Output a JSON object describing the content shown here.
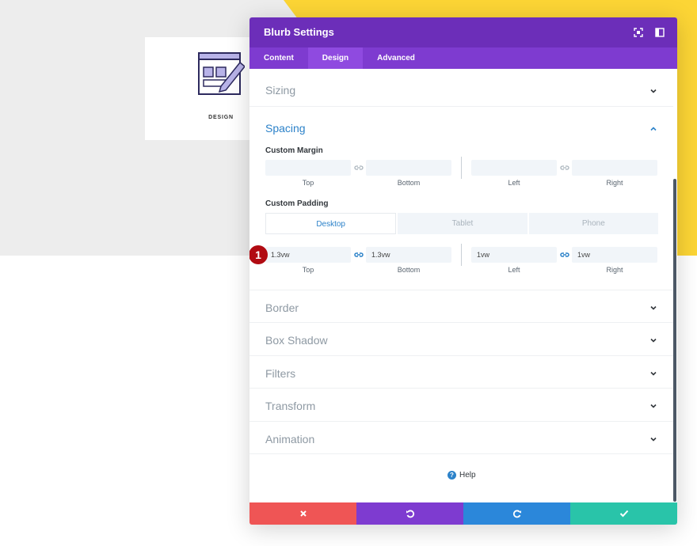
{
  "preview": {
    "blurb_title": "DESIGN",
    "colors": {
      "gray_bg": "#ededed",
      "yellow_bg": "#fcd535"
    }
  },
  "modal": {
    "title": "Blurb Settings",
    "tabs": [
      "Content",
      "Design",
      "Advanced"
    ],
    "active_tab": "Design",
    "colors": {
      "header": "#6c2eb9",
      "tabs": "#7e3bd0",
      "accent": "#2c82c9"
    }
  },
  "sections": {
    "sizing": "Sizing",
    "spacing": "Spacing",
    "border": "Border",
    "box_shadow": "Box Shadow",
    "filters": "Filters",
    "transform": "Transform",
    "animation": "Animation"
  },
  "spacing": {
    "margin_label": "Custom Margin",
    "padding_label": "Custom Padding",
    "captions": {
      "top": "Top",
      "bottom": "Bottom",
      "left": "Left",
      "right": "Right"
    },
    "margin": {
      "top": "",
      "bottom": "",
      "left": "",
      "right": ""
    },
    "device_tabs": [
      "Desktop",
      "Tablet",
      "Phone"
    ],
    "active_device": "Desktop",
    "padding": {
      "top": "1.3vw",
      "bottom": "1.3vw",
      "left": "1vw",
      "right": "1vw"
    }
  },
  "annotation": {
    "step": "1"
  },
  "help_label": "Help",
  "footer": {
    "icons": [
      "close-icon",
      "undo-icon",
      "redo-icon",
      "check-icon"
    ],
    "colors": {
      "discard": "#ef5555",
      "undo": "#7e3bd0",
      "redo": "#2b87da",
      "save": "#29c4a9"
    }
  }
}
